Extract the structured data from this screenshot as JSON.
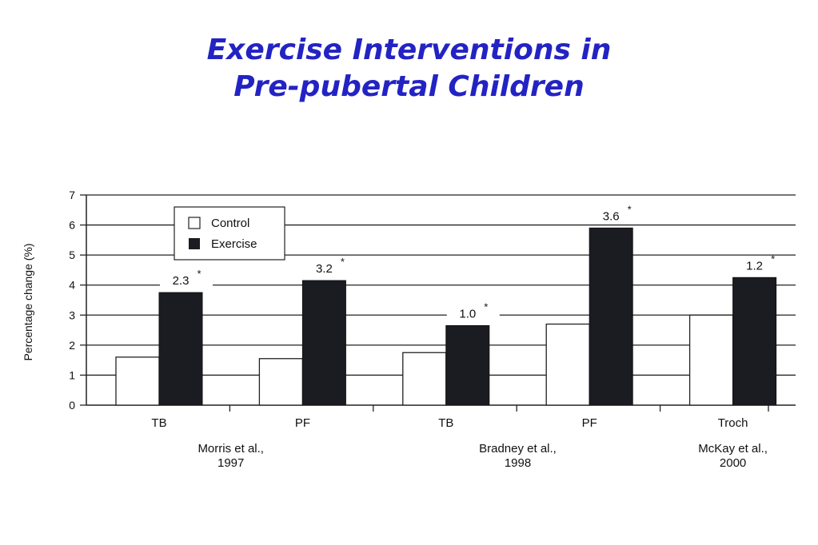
{
  "title": {
    "line1": "Exercise Interventions in",
    "line2": "Pre-pubertal Children"
  },
  "chart_data": {
    "type": "bar",
    "ylabel": "Percentage change (%)",
    "ylim": [
      0,
      7
    ],
    "yticks": [
      0,
      1,
      2,
      3,
      4,
      5,
      6,
      7
    ],
    "grid": "horizontal",
    "legend_placement": "top-left",
    "categories": [
      "TB",
      "PF",
      "TB",
      "PF",
      "Troch"
    ],
    "studies": [
      {
        "label_line1": "Morris et al.,",
        "label_line2": "1997",
        "categories": [
          0,
          1
        ]
      },
      {
        "label_line1": "Bradney et al.,",
        "label_line2": "1998",
        "categories": [
          2,
          3
        ]
      },
      {
        "label_line1": "McKay et al.,",
        "label_line2": "2000",
        "categories": [
          4
        ]
      }
    ],
    "series": [
      {
        "name": "Control",
        "color": "#ffffff",
        "values": [
          1.6,
          1.55,
          1.75,
          2.7,
          3.0
        ]
      },
      {
        "name": "Exercise",
        "color": "#1b1b22",
        "values": [
          3.75,
          4.15,
          2.65,
          5.9,
          4.25
        ]
      }
    ],
    "annotations": [
      {
        "text": "2.3",
        "marker": "*"
      },
      {
        "text": "3.2",
        "marker": "*"
      },
      {
        "text": "1.0",
        "marker": "*"
      },
      {
        "text": "3.6",
        "marker": "*"
      },
      {
        "text": "1.2",
        "marker": "*"
      }
    ]
  }
}
